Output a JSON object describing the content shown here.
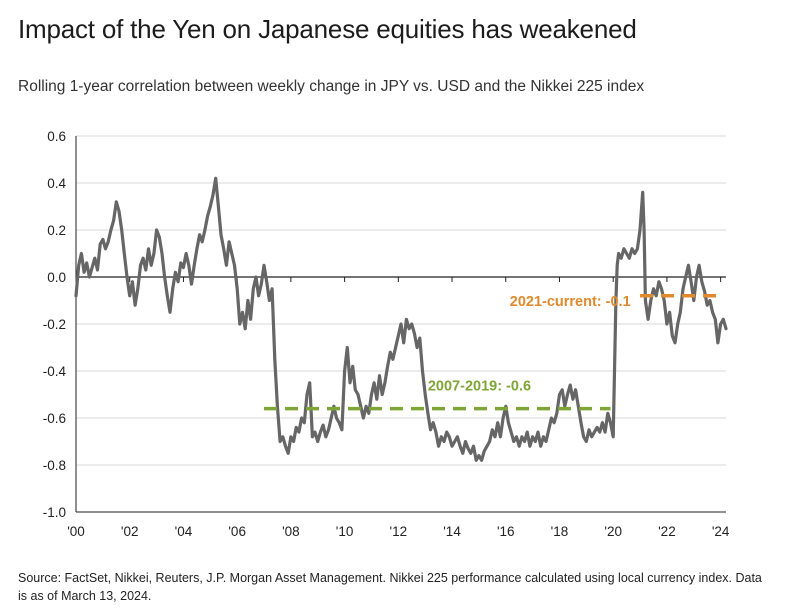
{
  "title": "Impact of the Yen on Japanese equities has weakened",
  "subtitle": "Rolling 1-year correlation between weekly change in JPY vs. USD and the Nikkei 225 index",
  "source": "Source: FactSet, Nikkei, Reuters, J.P. Morgan Asset Management. Nikkei 225 performance calculated using local currency index. Data is as of March 13, 2024.",
  "colors": {
    "series": "#666666",
    "avg_2007_2019": "#7fa536",
    "avg_2021_current": "#e08a2c",
    "grid": "#d9d9d9",
    "axis": "#222222"
  },
  "chart_data": {
    "type": "line",
    "ylim": [
      -1.0,
      0.6
    ],
    "yticks": [
      0.6,
      0.4,
      0.2,
      0.0,
      -0.2,
      -0.4,
      -0.6,
      -0.8,
      -1.0
    ],
    "ytick_labels": [
      "0.6",
      "0.4",
      "0.2",
      "0.0",
      "-0.2",
      "-0.4",
      "-0.6",
      "-0.8",
      "-1.0"
    ],
    "xlim": [
      2000,
      2024.2
    ],
    "xticks": [
      2000,
      2002,
      2004,
      2006,
      2008,
      2010,
      2012,
      2014,
      2016,
      2018,
      2020,
      2022,
      2024
    ],
    "xtick_labels": [
      "'00",
      "'02",
      "'04",
      "'06",
      "'08",
      "'10",
      "'12",
      "'14",
      "'16",
      "'18",
      "'20",
      "'22",
      "'24"
    ],
    "grid": "horizontal",
    "series": [
      {
        "points": [
          [
            2000.0,
            -0.08
          ],
          [
            2000.1,
            0.05
          ],
          [
            2000.2,
            0.1
          ],
          [
            2000.3,
            0.02
          ],
          [
            2000.4,
            0.06
          ],
          [
            2000.5,
            0.0
          ],
          [
            2000.6,
            0.04
          ],
          [
            2000.7,
            0.08
          ],
          [
            2000.8,
            0.03
          ],
          [
            2000.9,
            0.14
          ],
          [
            2001.0,
            0.16
          ],
          [
            2001.1,
            0.12
          ],
          [
            2001.2,
            0.15
          ],
          [
            2001.3,
            0.2
          ],
          [
            2001.4,
            0.24
          ],
          [
            2001.5,
            0.32
          ],
          [
            2001.6,
            0.28
          ],
          [
            2001.7,
            0.2
          ],
          [
            2001.8,
            0.1
          ],
          [
            2001.9,
            0.0
          ],
          [
            2002.0,
            -0.08
          ],
          [
            2002.1,
            -0.02
          ],
          [
            2002.2,
            -0.12
          ],
          [
            2002.3,
            -0.05
          ],
          [
            2002.4,
            0.05
          ],
          [
            2002.5,
            0.08
          ],
          [
            2002.6,
            0.03
          ],
          [
            2002.7,
            0.12
          ],
          [
            2002.8,
            0.05
          ],
          [
            2002.9,
            0.1
          ],
          [
            2003.0,
            0.2
          ],
          [
            2003.1,
            0.17
          ],
          [
            2003.2,
            0.1
          ],
          [
            2003.3,
            0.0
          ],
          [
            2003.4,
            -0.08
          ],
          [
            2003.5,
            -0.15
          ],
          [
            2003.6,
            -0.05
          ],
          [
            2003.7,
            0.02
          ],
          [
            2003.8,
            -0.02
          ],
          [
            2003.9,
            0.06
          ],
          [
            2004.0,
            0.04
          ],
          [
            2004.1,
            0.1
          ],
          [
            2004.2,
            0.05
          ],
          [
            2004.3,
            -0.03
          ],
          [
            2004.4,
            0.05
          ],
          [
            2004.5,
            0.12
          ],
          [
            2004.6,
            0.18
          ],
          [
            2004.7,
            0.15
          ],
          [
            2004.8,
            0.2
          ],
          [
            2004.9,
            0.26
          ],
          [
            2005.0,
            0.3
          ],
          [
            2005.1,
            0.35
          ],
          [
            2005.2,
            0.42
          ],
          [
            2005.3,
            0.3
          ],
          [
            2005.4,
            0.18
          ],
          [
            2005.5,
            0.12
          ],
          [
            2005.6,
            0.05
          ],
          [
            2005.7,
            0.15
          ],
          [
            2005.8,
            0.1
          ],
          [
            2005.9,
            0.05
          ],
          [
            2006.0,
            -0.05
          ],
          [
            2006.1,
            -0.2
          ],
          [
            2006.2,
            -0.15
          ],
          [
            2006.3,
            -0.22
          ],
          [
            2006.4,
            -0.1
          ],
          [
            2006.5,
            -0.18
          ],
          [
            2006.6,
            -0.05
          ],
          [
            2006.7,
            0.0
          ],
          [
            2006.8,
            -0.08
          ],
          [
            2006.9,
            -0.03
          ],
          [
            2007.0,
            0.05
          ],
          [
            2007.1,
            -0.02
          ],
          [
            2007.2,
            -0.1
          ],
          [
            2007.3,
            -0.05
          ],
          [
            2007.4,
            -0.35
          ],
          [
            2007.5,
            -0.55
          ],
          [
            2007.6,
            -0.7
          ],
          [
            2007.7,
            -0.68
          ],
          [
            2007.8,
            -0.72
          ],
          [
            2007.9,
            -0.75
          ],
          [
            2008.0,
            -0.68
          ],
          [
            2008.1,
            -0.7
          ],
          [
            2008.2,
            -0.64
          ],
          [
            2008.3,
            -0.66
          ],
          [
            2008.4,
            -0.6
          ],
          [
            2008.5,
            -0.62
          ],
          [
            2008.6,
            -0.5
          ],
          [
            2008.7,
            -0.45
          ],
          [
            2008.8,
            -0.68
          ],
          [
            2008.9,
            -0.66
          ],
          [
            2009.0,
            -0.7
          ],
          [
            2009.1,
            -0.66
          ],
          [
            2009.2,
            -0.63
          ],
          [
            2009.3,
            -0.68
          ],
          [
            2009.4,
            -0.65
          ],
          [
            2009.5,
            -0.6
          ],
          [
            2009.6,
            -0.55
          ],
          [
            2009.7,
            -0.6
          ],
          [
            2009.8,
            -0.62
          ],
          [
            2009.9,
            -0.65
          ],
          [
            2010.0,
            -0.4
          ],
          [
            2010.1,
            -0.3
          ],
          [
            2010.2,
            -0.45
          ],
          [
            2010.3,
            -0.38
          ],
          [
            2010.4,
            -0.48
          ],
          [
            2010.5,
            -0.5
          ],
          [
            2010.6,
            -0.55
          ],
          [
            2010.7,
            -0.6
          ],
          [
            2010.8,
            -0.55
          ],
          [
            2010.9,
            -0.58
          ],
          [
            2011.0,
            -0.5
          ],
          [
            2011.1,
            -0.45
          ],
          [
            2011.2,
            -0.52
          ],
          [
            2011.3,
            -0.42
          ],
          [
            2011.4,
            -0.5
          ],
          [
            2011.5,
            -0.45
          ],
          [
            2011.6,
            -0.38
          ],
          [
            2011.7,
            -0.32
          ],
          [
            2011.8,
            -0.35
          ],
          [
            2011.9,
            -0.3
          ],
          [
            2012.0,
            -0.25
          ],
          [
            2012.1,
            -0.2
          ],
          [
            2012.2,
            -0.28
          ],
          [
            2012.3,
            -0.18
          ],
          [
            2012.4,
            -0.22
          ],
          [
            2012.5,
            -0.2
          ],
          [
            2012.6,
            -0.24
          ],
          [
            2012.7,
            -0.3
          ],
          [
            2012.8,
            -0.26
          ],
          [
            2012.9,
            -0.4
          ],
          [
            2013.0,
            -0.5
          ],
          [
            2013.1,
            -0.58
          ],
          [
            2013.2,
            -0.65
          ],
          [
            2013.3,
            -0.62
          ],
          [
            2013.4,
            -0.66
          ],
          [
            2013.5,
            -0.72
          ],
          [
            2013.6,
            -0.68
          ],
          [
            2013.7,
            -0.7
          ],
          [
            2013.8,
            -0.66
          ],
          [
            2013.9,
            -0.68
          ],
          [
            2014.0,
            -0.72
          ],
          [
            2014.1,
            -0.7
          ],
          [
            2014.2,
            -0.68
          ],
          [
            2014.3,
            -0.72
          ],
          [
            2014.4,
            -0.75
          ],
          [
            2014.5,
            -0.7
          ],
          [
            2014.6,
            -0.73
          ],
          [
            2014.7,
            -0.75
          ],
          [
            2014.8,
            -0.72
          ],
          [
            2014.9,
            -0.78
          ],
          [
            2015.0,
            -0.76
          ],
          [
            2015.1,
            -0.78
          ],
          [
            2015.2,
            -0.74
          ],
          [
            2015.3,
            -0.72
          ],
          [
            2015.4,
            -0.7
          ],
          [
            2015.5,
            -0.65
          ],
          [
            2015.6,
            -0.68
          ],
          [
            2015.7,
            -0.62
          ],
          [
            2015.8,
            -0.68
          ],
          [
            2015.9,
            -0.6
          ],
          [
            2016.0,
            -0.55
          ],
          [
            2016.1,
            -0.62
          ],
          [
            2016.2,
            -0.66
          ],
          [
            2016.3,
            -0.7
          ],
          [
            2016.4,
            -0.68
          ],
          [
            2016.5,
            -0.72
          ],
          [
            2016.6,
            -0.68
          ],
          [
            2016.7,
            -0.7
          ],
          [
            2016.8,
            -0.66
          ],
          [
            2016.9,
            -0.72
          ],
          [
            2017.0,
            -0.68
          ],
          [
            2017.1,
            -0.7
          ],
          [
            2017.2,
            -0.66
          ],
          [
            2017.3,
            -0.72
          ],
          [
            2017.4,
            -0.68
          ],
          [
            2017.5,
            -0.7
          ],
          [
            2017.6,
            -0.65
          ],
          [
            2017.7,
            -0.6
          ],
          [
            2017.8,
            -0.62
          ],
          [
            2017.9,
            -0.58
          ],
          [
            2018.0,
            -0.5
          ],
          [
            2018.1,
            -0.48
          ],
          [
            2018.2,
            -0.55
          ],
          [
            2018.3,
            -0.5
          ],
          [
            2018.4,
            -0.46
          ],
          [
            2018.5,
            -0.52
          ],
          [
            2018.6,
            -0.48
          ],
          [
            2018.7,
            -0.55
          ],
          [
            2018.8,
            -0.62
          ],
          [
            2018.9,
            -0.68
          ],
          [
            2019.0,
            -0.7
          ],
          [
            2019.1,
            -0.65
          ],
          [
            2019.2,
            -0.68
          ],
          [
            2019.3,
            -0.66
          ],
          [
            2019.4,
            -0.64
          ],
          [
            2019.5,
            -0.66
          ],
          [
            2019.6,
            -0.62
          ],
          [
            2019.7,
            -0.66
          ],
          [
            2019.8,
            -0.58
          ],
          [
            2019.9,
            -0.62
          ],
          [
            2020.0,
            -0.68
          ],
          [
            2020.1,
            -0.1
          ],
          [
            2020.15,
            0.05
          ],
          [
            2020.2,
            0.1
          ],
          [
            2020.3,
            0.08
          ],
          [
            2020.4,
            0.12
          ],
          [
            2020.5,
            0.1
          ],
          [
            2020.6,
            0.08
          ],
          [
            2020.7,
            0.12
          ],
          [
            2020.8,
            0.1
          ],
          [
            2020.9,
            0.12
          ],
          [
            2021.0,
            0.2
          ],
          [
            2021.1,
            0.36
          ],
          [
            2021.15,
            0.2
          ],
          [
            2021.2,
            -0.1
          ],
          [
            2021.3,
            -0.18
          ],
          [
            2021.4,
            -0.1
          ],
          [
            2021.5,
            -0.05
          ],
          [
            2021.6,
            -0.08
          ],
          [
            2021.7,
            -0.02
          ],
          [
            2021.8,
            -0.05
          ],
          [
            2021.9,
            -0.1
          ],
          [
            2022.0,
            -0.2
          ],
          [
            2022.1,
            -0.15
          ],
          [
            2022.2,
            -0.25
          ],
          [
            2022.3,
            -0.28
          ],
          [
            2022.4,
            -0.2
          ],
          [
            2022.5,
            -0.15
          ],
          [
            2022.6,
            -0.05
          ],
          [
            2022.7,
            0.0
          ],
          [
            2022.8,
            0.05
          ],
          [
            2022.9,
            -0.02
          ],
          [
            2023.0,
            -0.1
          ],
          [
            2023.1,
            0.0
          ],
          [
            2023.2,
            0.05
          ],
          [
            2023.3,
            -0.02
          ],
          [
            2023.4,
            -0.06
          ],
          [
            2023.5,
            -0.12
          ],
          [
            2023.6,
            -0.1
          ],
          [
            2023.7,
            -0.15
          ],
          [
            2023.8,
            -0.18
          ],
          [
            2023.9,
            -0.28
          ],
          [
            2024.0,
            -0.2
          ],
          [
            2024.1,
            -0.18
          ],
          [
            2024.2,
            -0.22
          ]
        ]
      }
    ],
    "annotations": [
      {
        "label": "2007-2019: -0.6",
        "x_start": 2007.0,
        "x_end": 2019.9,
        "y": -0.56,
        "color": "#7fa536"
      },
      {
        "label": "2021-current: -0.1",
        "x_start": 2021.0,
        "x_end": 2024.1,
        "y": -0.08,
        "color": "#e08a2c"
      }
    ]
  }
}
